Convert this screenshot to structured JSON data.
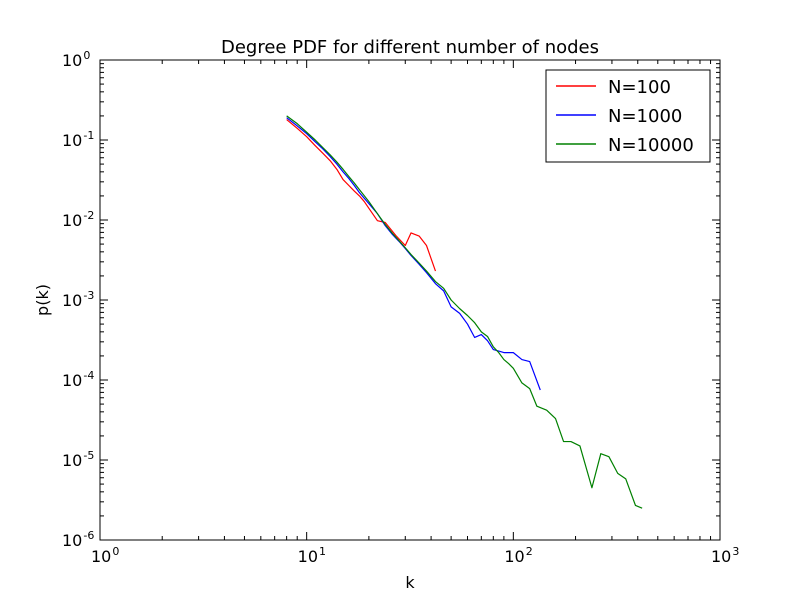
{
  "chart_data": {
    "type": "line",
    "title": "Degree PDF for different number of nodes",
    "xlabel": "k",
    "ylabel": "p(k)",
    "xscale": "log",
    "yscale": "log",
    "xlim": [
      1,
      1000
    ],
    "ylim": [
      1e-06,
      1
    ],
    "x_ticks": [
      {
        "value": 1,
        "base": "10",
        "exp": "0"
      },
      {
        "value": 10,
        "base": "10",
        "exp": "1"
      },
      {
        "value": 100,
        "base": "10",
        "exp": "2"
      },
      {
        "value": 1000,
        "base": "10",
        "exp": "3"
      }
    ],
    "y_ticks": [
      {
        "value": 1,
        "base": "10",
        "exp": "0"
      },
      {
        "value": 0.1,
        "base": "10",
        "exp": "-1"
      },
      {
        "value": 0.01,
        "base": "10",
        "exp": "-2"
      },
      {
        "value": 0.001,
        "base": "10",
        "exp": "-3"
      },
      {
        "value": 0.0001,
        "base": "10",
        "exp": "-4"
      },
      {
        "value": 1e-05,
        "base": "10",
        "exp": "-5"
      },
      {
        "value": 1e-06,
        "base": "10",
        "exp": "-6"
      }
    ],
    "grid": false,
    "legend_position": "top-right",
    "series": [
      {
        "name": "N=100",
        "color": "#ff0000",
        "x": [
          8,
          9,
          10,
          11,
          12,
          13,
          14,
          15,
          16,
          17,
          18,
          19,
          20,
          22,
          24,
          27,
          30,
          32,
          35,
          38,
          42
        ],
        "y": [
          0.18,
          0.14,
          0.11,
          0.085,
          0.068,
          0.055,
          0.043,
          0.032,
          0.027,
          0.023,
          0.02,
          0.017,
          0.014,
          0.0098,
          0.0093,
          0.0064,
          0.0048,
          0.0069,
          0.0063,
          0.0048,
          0.0023
        ]
      },
      {
        "name": "N=1000",
        "color": "#0000ff",
        "x": [
          8,
          9,
          10,
          11,
          12,
          13,
          14,
          15,
          16,
          17,
          18,
          20,
          22,
          24,
          26,
          28,
          30,
          32,
          35,
          38,
          42,
          46,
          50,
          55,
          60,
          65,
          70,
          75,
          80,
          85,
          90,
          100,
          110,
          120,
          135
        ],
        "y": [
          0.19,
          0.15,
          0.12,
          0.095,
          0.077,
          0.062,
          0.05,
          0.04,
          0.033,
          0.027,
          0.022,
          0.016,
          0.012,
          0.0085,
          0.0066,
          0.0054,
          0.0044,
          0.0036,
          0.0028,
          0.0022,
          0.0016,
          0.0013,
          0.00082,
          0.00068,
          0.0005,
          0.00034,
          0.00037,
          0.00031,
          0.00024,
          0.00023,
          0.00022,
          0.00022,
          0.00018,
          0.00017,
          7.5e-05
        ]
      },
      {
        "name": "N=10000",
        "color": "#008000",
        "x": [
          8,
          9,
          10,
          11,
          12,
          13,
          14,
          15,
          16,
          17,
          18,
          20,
          22,
          24,
          26,
          28,
          30,
          32,
          35,
          38,
          42,
          46,
          50,
          55,
          60,
          65,
          70,
          75,
          80,
          85,
          90,
          95,
          100,
          110,
          120,
          130,
          145,
          160,
          175,
          190,
          210,
          240,
          265,
          290,
          320,
          350,
          390,
          420
        ],
        "y": [
          0.2,
          0.16,
          0.125,
          0.1,
          0.08,
          0.065,
          0.053,
          0.043,
          0.035,
          0.029,
          0.024,
          0.017,
          0.012,
          0.0088,
          0.0068,
          0.0055,
          0.0045,
          0.0037,
          0.0029,
          0.0023,
          0.0017,
          0.0014,
          0.001,
          0.00078,
          0.00064,
          0.00052,
          0.0004,
          0.00035,
          0.00026,
          0.00022,
          0.00018,
          0.00016,
          0.00014,
          9.2e-05,
          7.8e-05,
          4.7e-05,
          4.2e-05,
          3.3e-05,
          1.7e-05,
          1.7e-05,
          1.5e-05,
          4.5e-06,
          1.2e-05,
          1.1e-05,
          6.8e-06,
          5.8e-06,
          2.7e-06,
          2.5e-06
        ]
      }
    ]
  }
}
